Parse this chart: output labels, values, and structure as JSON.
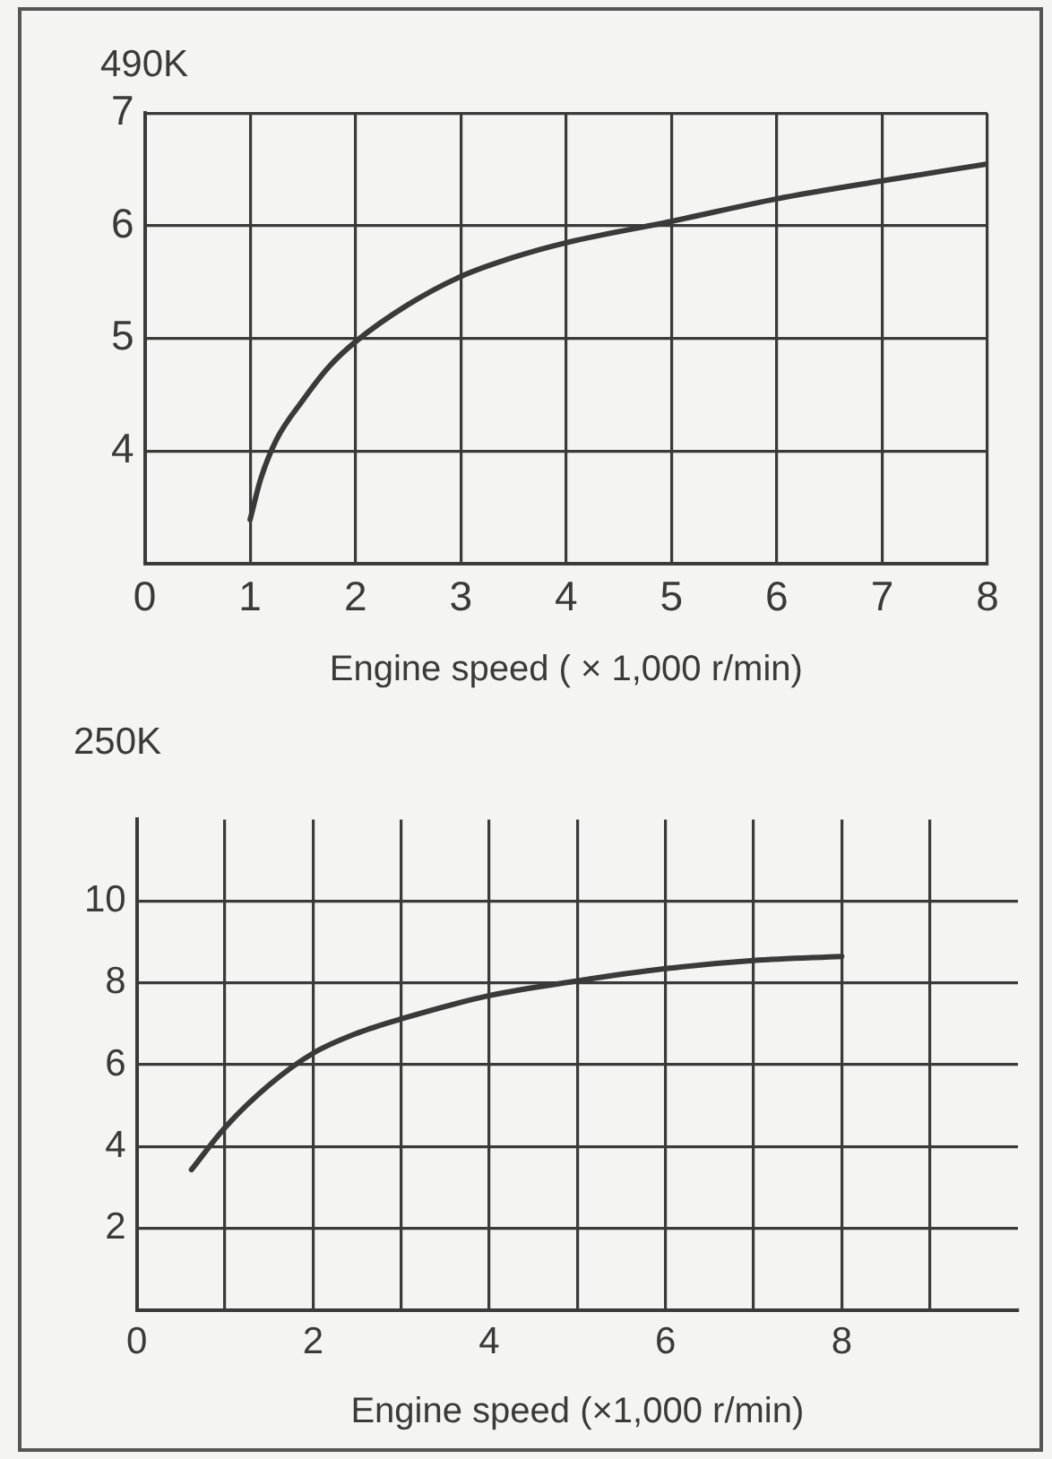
{
  "chart_data": [
    {
      "type": "line",
      "ylabel": "490K",
      "xlabel": "Engine speed ( × 1,000 r/min)",
      "color": "#3a3a3a",
      "marker": "none",
      "grid": true,
      "x": [
        1,
        1.1,
        1.25,
        1.5,
        1.75,
        2,
        2.5,
        3,
        3.5,
        4,
        5,
        6,
        7,
        8
      ],
      "values": [
        3.39,
        3.75,
        4.1,
        4.45,
        4.75,
        4.97,
        5.3,
        5.55,
        5.72,
        5.85,
        6.04,
        6.24,
        6.4,
        6.55
      ],
      "xlim": [
        0,
        8
      ],
      "xticks": [
        0,
        1,
        2,
        3,
        4,
        5,
        6,
        7,
        8
      ],
      "ylim": [
        3,
        7
      ],
      "yticks": [
        4,
        5,
        6,
        7
      ]
    },
    {
      "type": "line",
      "ylabel": "250K",
      "xlabel": "Engine speed (×1,000 r/min)",
      "color": "#3a3a3a",
      "marker": "none",
      "grid": true,
      "x": [
        0.62,
        1,
        1.5,
        2,
        2.5,
        3,
        4,
        5,
        6,
        7,
        8
      ],
      "values": [
        3.43,
        4.46,
        5.5,
        6.28,
        6.77,
        7.12,
        7.69,
        8.05,
        8.35,
        8.55,
        8.65
      ],
      "xlim": [
        0,
        10
      ],
      "xticks": [
        0,
        {
          "value": 1,
          "label": null
        },
        2,
        {
          "value": 3,
          "label": null
        },
        4,
        {
          "value": 5,
          "label": null
        },
        6,
        {
          "value": 7,
          "label": null
        },
        8,
        {
          "value": 9,
          "label": null
        }
      ],
      "ylim": [
        0,
        12
      ],
      "yticks": [
        2,
        4,
        6,
        8,
        10
      ]
    }
  ]
}
